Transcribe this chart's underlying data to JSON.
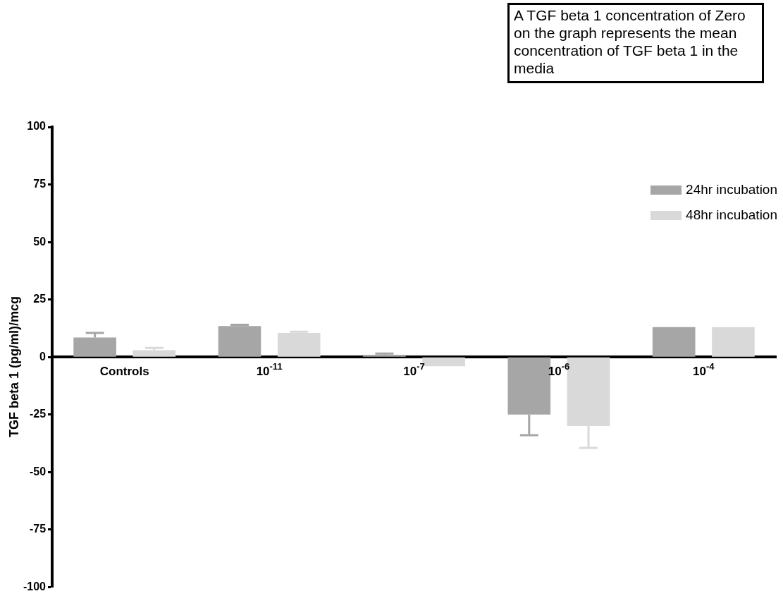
{
  "chart_data": {
    "type": "bar",
    "ylabel": "TGF beta 1 (pg/ml)/mcg",
    "categories": [
      "Controls",
      "10$^{-11}$",
      "10$^{-7}$",
      "10$^{-6}$",
      "10$^{-4}$"
    ],
    "series": [
      {
        "name": "24hr incubation",
        "color": "#a6a6a6",
        "values": [
          8.5,
          13.5,
          1,
          -25,
          13
        ],
        "errors": [
          [
            8.5,
            10.5
          ],
          [
            13.5,
            14
          ],
          [
            1,
            1.5
          ],
          [
            -34,
            -25
          ],
          null
        ]
      },
      {
        "name": "48hr incubation",
        "color": "#d9d9d9",
        "values": [
          3,
          10.5,
          -4,
          -30,
          13
        ],
        "errors": [
          [
            3,
            4
          ],
          [
            10.5,
            11
          ],
          null,
          [
            -39.5,
            -30
          ],
          null
        ]
      }
    ],
    "ylim": [
      -100,
      100
    ],
    "yticks": [
      -100,
      -75,
      -50,
      -25,
      0,
      25,
      50,
      75,
      100
    ],
    "grid": false,
    "legend": "right",
    "annotations": [
      "A TGF beta 1 concentration of Zero on the graph represents the mean concentration of TGF beta 1 in the media"
    ]
  }
}
